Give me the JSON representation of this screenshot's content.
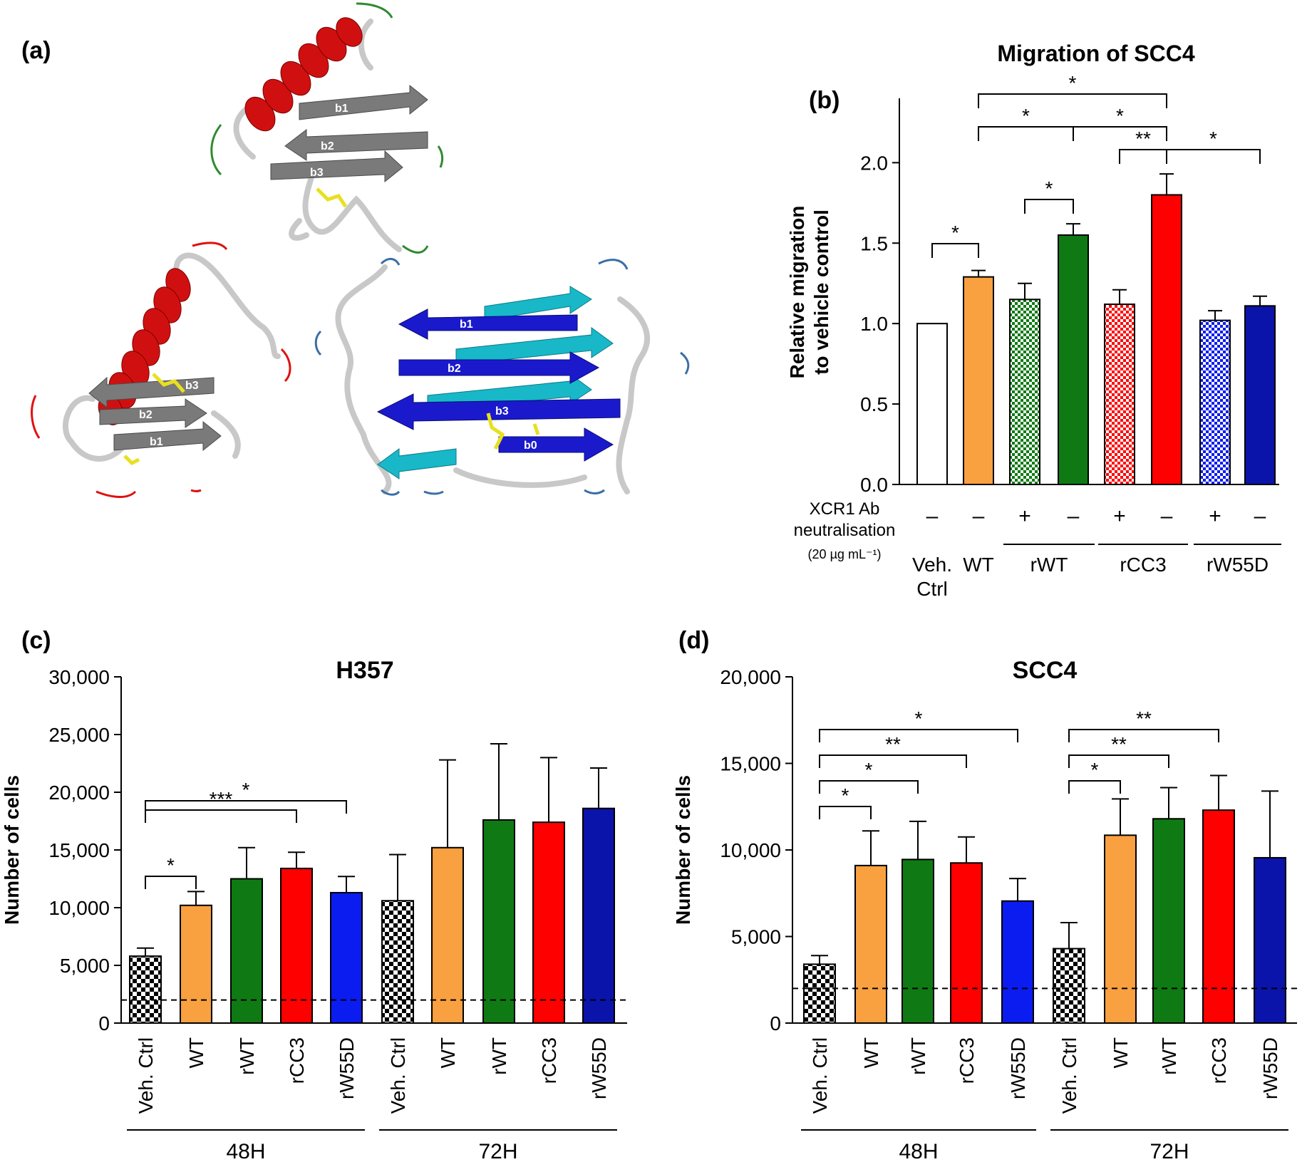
{
  "panels": {
    "a": {
      "label": "(a)",
      "structures": [
        {
          "strand_labels": [
            "b1",
            "b2",
            "b3"
          ]
        },
        {
          "strand_labels": [
            "b3",
            "b2",
            "b1"
          ]
        },
        {
          "strand_labels": [
            "b1",
            "b2",
            "b3",
            "b0"
          ]
        }
      ]
    },
    "b": {
      "label": "(b)"
    },
    "c": {
      "label": "(c)"
    },
    "d": {
      "label": "(d)"
    }
  },
  "colors": {
    "orange": "#F9A040",
    "green": "#0F7A14",
    "red": "#FF0000",
    "blue": "#0A1CF0",
    "navy": "#0A14AA",
    "helix_red": "#D01010",
    "strand_gray": "#7A7A7A",
    "strand_blue": "#1A1ACC",
    "strand_cyan": "#18B8C8",
    "disulfide": "#E8E020"
  },
  "chart_data": [
    {
      "id": "b",
      "type": "bar",
      "title": "Migration of SCC4",
      "ylabel_lines": [
        "Relative migration",
        "to vehicle control"
      ],
      "ylim": [
        0,
        2.4
      ],
      "yticks": [
        "0.0",
        "0.5",
        "1.0",
        "1.5",
        "2.0"
      ],
      "ytick_values": [
        0,
        0.5,
        1.0,
        1.5,
        2.0
      ],
      "bars": [
        {
          "value": 1.0,
          "error": 0.0,
          "color": "#FFFFFF",
          "pattern": "none"
        },
        {
          "value": 1.29,
          "error": 0.04,
          "color": "#F9A040",
          "pattern": "none"
        },
        {
          "value": 1.15,
          "error": 0.1,
          "color": "#0F7A14",
          "pattern": "check"
        },
        {
          "value": 1.55,
          "error": 0.07,
          "color": "#0F7A14",
          "pattern": "none"
        },
        {
          "value": 1.12,
          "error": 0.09,
          "color": "#FF0000",
          "pattern": "check"
        },
        {
          "value": 1.8,
          "error": 0.13,
          "color": "#FF0000",
          "pattern": "none"
        },
        {
          "value": 1.02,
          "error": 0.06,
          "color": "#0A1CF0",
          "pattern": "check"
        },
        {
          "value": 1.11,
          "error": 0.06,
          "color": "#0A14AA",
          "pattern": "none"
        }
      ],
      "treatment_label_lines": [
        "XCR1 Ab",
        "neutralisation",
        "(20 µg mL⁻¹)"
      ],
      "treatment_signs": [
        "–",
        "–",
        "+",
        "–",
        "+",
        "–",
        "+",
        "–"
      ],
      "group_labels": [
        {
          "text": "Veh.",
          "text2": "Ctrl",
          "span": [
            0,
            0
          ],
          "underline": false
        },
        {
          "text": "WT",
          "span": [
            1,
            1
          ],
          "underline": false
        },
        {
          "text": "rWT",
          "span": [
            2,
            3
          ],
          "underline": true
        },
        {
          "text": "rCC3",
          "span": [
            4,
            5
          ],
          "underline": true
        },
        {
          "text": "rW55D",
          "span": [
            6,
            7
          ],
          "underline": true
        }
      ],
      "significance": [
        {
          "from": 0,
          "to": 1,
          "label": "*"
        },
        {
          "from": 2,
          "to": 3,
          "label": "*"
        },
        {
          "from": 1,
          "to": 3,
          "label": "*"
        },
        {
          "from": 3,
          "to": 5,
          "label": "*"
        },
        {
          "from": 1,
          "to": 5,
          "label": "*"
        },
        {
          "from": 4,
          "to": 5,
          "label": "**"
        },
        {
          "from": 5,
          "to": 7,
          "label": "*"
        }
      ]
    },
    {
      "id": "c",
      "type": "bar",
      "title": "H357",
      "ylabel": "Number of cells",
      "ylim": [
        0,
        30000
      ],
      "yticks": [
        "0",
        "5,000",
        "10,000",
        "15,000",
        "20,000",
        "25,000",
        "30,000"
      ],
      "ytick_values": [
        0,
        5000,
        10000,
        15000,
        20000,
        25000,
        30000
      ],
      "baseline": 2000,
      "categories": [
        "Veh. Ctrl",
        "WT",
        "rWT",
        "rCC3",
        "rW55D",
        "Veh. Ctrl",
        "WT",
        "rWT",
        "rCC3",
        "rW55D"
      ],
      "bars": [
        {
          "value": 5800,
          "error": 700,
          "color": "#FFFFFF",
          "pattern": "bw"
        },
        {
          "value": 10200,
          "error": 1200,
          "color": "#F9A040",
          "pattern": "none"
        },
        {
          "value": 12500,
          "error": 2700,
          "color": "#0F7A14",
          "pattern": "none"
        },
        {
          "value": 13400,
          "error": 1400,
          "color": "#FF0000",
          "pattern": "none"
        },
        {
          "value": 11300,
          "error": 1400,
          "color": "#0A1CF0",
          "pattern": "none"
        },
        {
          "value": 10600,
          "error": 4000,
          "color": "#FFFFFF",
          "pattern": "bw"
        },
        {
          "value": 15200,
          "error": 7600,
          "color": "#F9A040",
          "pattern": "none"
        },
        {
          "value": 17600,
          "error": 6600,
          "color": "#0F7A14",
          "pattern": "none"
        },
        {
          "value": 17400,
          "error": 5600,
          "color": "#FF0000",
          "pattern": "none"
        },
        {
          "value": 18600,
          "error": 3500,
          "color": "#0A14AA",
          "pattern": "none"
        }
      ],
      "time_groups": [
        {
          "label": "48H",
          "span": [
            0,
            4
          ]
        },
        {
          "label": "72H",
          "span": [
            5,
            9
          ]
        }
      ],
      "significance": [
        {
          "from": 0,
          "to": 1,
          "label": "*"
        },
        {
          "from": 0,
          "to": 3,
          "label": "***"
        },
        {
          "from": 0,
          "to": 4,
          "label": "*"
        }
      ]
    },
    {
      "id": "d",
      "type": "bar",
      "title": "SCC4",
      "ylabel": "Number of cells",
      "ylim": [
        0,
        20000
      ],
      "yticks": [
        "0",
        "5,000",
        "10,000",
        "15,000",
        "20,000"
      ],
      "ytick_values": [
        0,
        5000,
        10000,
        15000,
        20000
      ],
      "baseline": 2000,
      "categories": [
        "Veh. Ctrl",
        "WT",
        "rWT",
        "rCC3",
        "rW55D",
        "Veh. Ctrl",
        "WT",
        "rWT",
        "rCC3",
        "rW55D"
      ],
      "bars": [
        {
          "value": 3400,
          "error": 500,
          "color": "#FFFFFF",
          "pattern": "bw"
        },
        {
          "value": 9100,
          "error": 2000,
          "color": "#F9A040",
          "pattern": "none"
        },
        {
          "value": 9450,
          "error": 2200,
          "color": "#0F7A14",
          "pattern": "none"
        },
        {
          "value": 9250,
          "error": 1500,
          "color": "#FF0000",
          "pattern": "none"
        },
        {
          "value": 7050,
          "error": 1300,
          "color": "#0A1CF0",
          "pattern": "none"
        },
        {
          "value": 4300,
          "error": 1500,
          "color": "#FFFFFF",
          "pattern": "bw"
        },
        {
          "value": 10850,
          "error": 2100,
          "color": "#F9A040",
          "pattern": "none"
        },
        {
          "value": 11800,
          "error": 1800,
          "color": "#0F7A14",
          "pattern": "none"
        },
        {
          "value": 12300,
          "error": 2000,
          "color": "#FF0000",
          "pattern": "none"
        },
        {
          "value": 9550,
          "error": 3850,
          "color": "#0A14AA",
          "pattern": "none"
        }
      ],
      "time_groups": [
        {
          "label": "48H",
          "span": [
            0,
            4
          ]
        },
        {
          "label": "72H",
          "span": [
            5,
            9
          ]
        }
      ],
      "significance": [
        {
          "from": 0,
          "to": 1,
          "label": "*"
        },
        {
          "from": 0,
          "to": 2,
          "label": "*"
        },
        {
          "from": 0,
          "to": 3,
          "label": "**"
        },
        {
          "from": 0,
          "to": 4,
          "label": "*"
        },
        {
          "from": 5,
          "to": 6,
          "label": "*"
        },
        {
          "from": 5,
          "to": 7,
          "label": "**"
        },
        {
          "from": 5,
          "to": 8,
          "label": "**"
        }
      ]
    }
  ]
}
